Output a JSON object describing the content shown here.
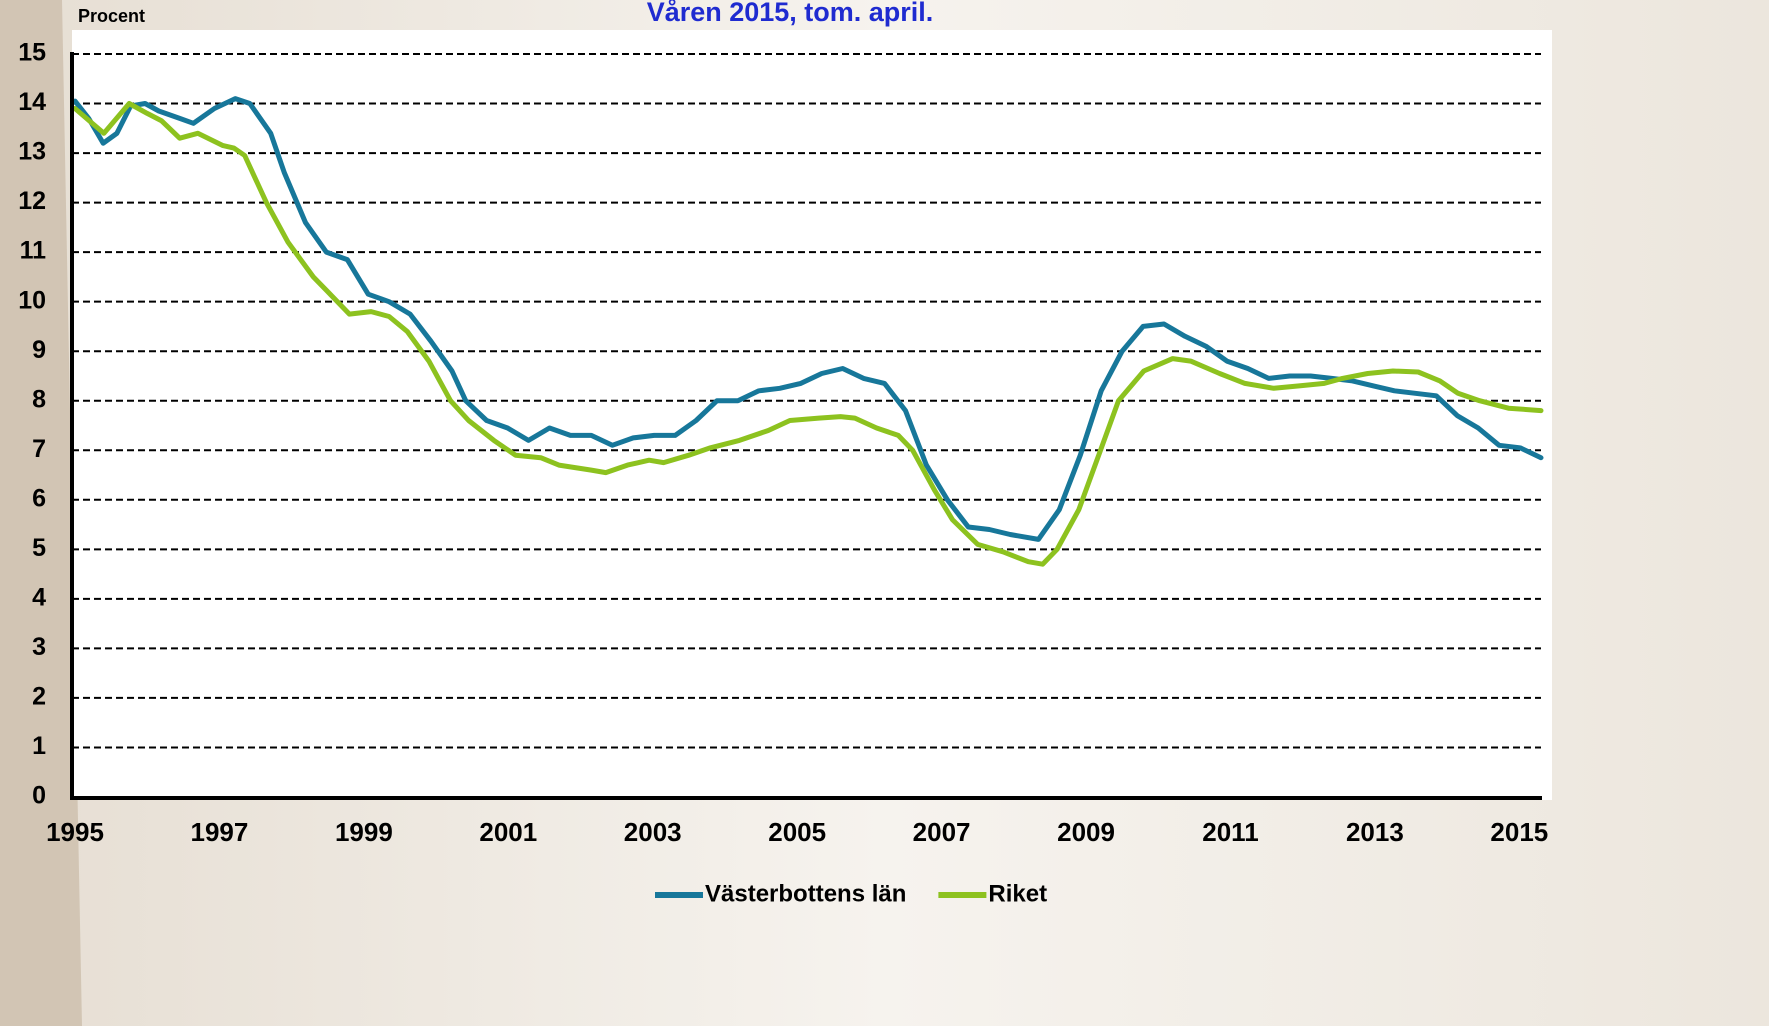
{
  "chart_data": {
    "type": "line",
    "title": "Våren 2015, tom. april.",
    "y_label": "Procent",
    "xlim": [
      1995,
      2015.3
    ],
    "xticks": [
      1995,
      1997,
      1999,
      2001,
      2003,
      2005,
      2007,
      2009,
      2011,
      2013,
      2015
    ],
    "ylim": [
      0,
      15
    ],
    "yticks": [
      0,
      1,
      2,
      3,
      4,
      5,
      6,
      7,
      8,
      9,
      10,
      11,
      12,
      13,
      14,
      15
    ],
    "grid": true,
    "legend": "bottom",
    "series": [
      {
        "name": "Västerbottens län",
        "color": "#17779a",
        "x": [
          1995,
          1995.19,
          1995.39,
          1995.58,
          1995.77,
          1995.97,
          1996.16,
          1996.45,
          1996.64,
          1996.93,
          1997.22,
          1997.42,
          1997.71,
          1997.9,
          1998.19,
          1998.48,
          1998.77,
          1999.06,
          1999.35,
          1999.64,
          1999.93,
          2000.22,
          2000.41,
          2000.7,
          2000.99,
          2001.28,
          2001.57,
          2001.86,
          2002.15,
          2002.44,
          2002.73,
          2003.02,
          2003.31,
          2003.6,
          2003.89,
          2004.18,
          2004.47,
          2004.76,
          2005.05,
          2005.34,
          2005.63,
          2005.92,
          2006.21,
          2006.5,
          2006.79,
          2007.08,
          2007.37,
          2007.66,
          2007.95,
          2008.34,
          2008.63,
          2008.92,
          2009.21,
          2009.5,
          2009.79,
          2010.08,
          2010.37,
          2010.66,
          2010.95,
          2011.24,
          2011.53,
          2011.82,
          2012.11,
          2012.4,
          2012.69,
          2012.98,
          2013.27,
          2013.56,
          2013.85,
          2014.14,
          2014.43,
          2014.72,
          2015.01,
          2015.3
        ],
        "values": [
          14.05,
          13.7,
          13.2,
          13.4,
          13.95,
          14.0,
          13.85,
          13.7,
          13.6,
          13.9,
          14.1,
          14.0,
          13.4,
          12.6,
          11.6,
          11.0,
          10.85,
          10.15,
          10.0,
          9.75,
          9.2,
          8.6,
          8.0,
          7.6,
          7.45,
          7.2,
          7.45,
          7.3,
          7.3,
          7.1,
          7.25,
          7.3,
          7.3,
          7.6,
          8.0,
          8.0,
          8.2,
          8.25,
          8.35,
          8.55,
          8.65,
          8.45,
          8.35,
          7.8,
          6.7,
          6.0,
          5.45,
          5.4,
          5.3,
          5.2,
          5.8,
          6.9,
          8.2,
          9.0,
          9.5,
          9.55,
          9.3,
          9.1,
          8.8,
          8.65,
          8.45,
          8.5,
          8.5,
          8.45,
          8.4,
          8.3,
          8.2,
          8.15,
          8.1,
          7.7,
          7.45,
          7.1,
          7.05,
          6.85
        ]
      },
      {
        "name": "Riket",
        "color": "#8dc21f",
        "x": [
          1995,
          1995.4,
          1995.75,
          1996.0,
          1996.2,
          1996.45,
          1996.7,
          1997.05,
          1997.2,
          1997.35,
          1997.65,
          1997.95,
          1998.3,
          1998.5,
          1998.8,
          1999.1,
          1999.35,
          1999.6,
          1999.9,
          2000.2,
          2000.45,
          2000.8,
          2001.1,
          2001.45,
          2001.7,
          2002.15,
          2002.35,
          2002.65,
          2002.95,
          2003.15,
          2003.5,
          2003.8,
          2004.2,
          2004.6,
          2004.9,
          2005.3,
          2005.6,
          2005.8,
          2006.1,
          2006.4,
          2006.6,
          2006.9,
          2007.15,
          2007.5,
          2007.85,
          2008.2,
          2008.4,
          2008.6,
          2008.9,
          2009.2,
          2009.45,
          2009.8,
          2010.2,
          2010.45,
          2010.85,
          2011.2,
          2011.6,
          2011.95,
          2012.3,
          2012.55,
          2012.9,
          2013.25,
          2013.6,
          2013.9,
          2014.15,
          2014.45,
          2014.85,
          2015.3
        ],
        "values": [
          13.9,
          13.4,
          14.0,
          13.8,
          13.65,
          13.3,
          13.4,
          13.15,
          13.1,
          12.95,
          12.0,
          11.2,
          10.5,
          10.2,
          9.75,
          9.8,
          9.7,
          9.4,
          8.8,
          8.0,
          7.6,
          7.2,
          6.9,
          6.85,
          6.7,
          6.6,
          6.55,
          6.7,
          6.8,
          6.75,
          6.9,
          7.05,
          7.2,
          7.4,
          7.6,
          7.65,
          7.68,
          7.65,
          7.45,
          7.3,
          7.0,
          6.2,
          5.6,
          5.1,
          4.95,
          4.75,
          4.7,
          5.0,
          5.8,
          7.0,
          8.0,
          8.6,
          8.85,
          8.8,
          8.55,
          8.35,
          8.25,
          8.3,
          8.35,
          8.45,
          8.55,
          8.6,
          8.58,
          8.4,
          8.15,
          8.0,
          7.85,
          7.8
        ]
      }
    ]
  }
}
